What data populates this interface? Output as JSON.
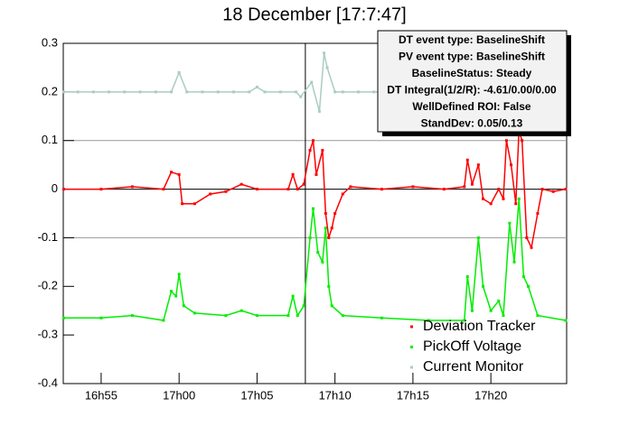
{
  "chart_data": {
    "type": "scatter",
    "title": "18 December [17:7:47]",
    "xlim": [
      1012.57,
      1044.86
    ],
    "ylim": [
      -0.4,
      0.3
    ],
    "xticks": [
      {
        "value": 1015,
        "label": "16h55"
      },
      {
        "value": 1020,
        "label": "17h00"
      },
      {
        "value": 1025,
        "label": "17h05"
      },
      {
        "value": 1030,
        "label": "17h10"
      },
      {
        "value": 1035,
        "label": "17h15"
      },
      {
        "value": 1040,
        "label": "17h20"
      }
    ],
    "yticks": [
      -0.4,
      -0.3,
      -0.2,
      -0.1,
      0,
      0.1,
      0.2,
      0.3
    ],
    "reference_lines": {
      "y": [
        0.1,
        0,
        -0.1
      ],
      "x": [
        1028.1
      ]
    },
    "stats_box": [
      "DT event type: BaselineShift",
      "PV event type: BaselineShift",
      "BaselineStatus: Steady",
      "DT Integral(1/2/R): -4.61/0.00/0.00",
      "WellDefined ROI: False",
      "StandDev: 0.05/0.13"
    ],
    "series": [
      {
        "name": "Deviation Tracker",
        "color": "#ff0000",
        "x": [
          1012.6,
          1015,
          1017,
          1019,
          1019.5,
          1020,
          1020.2,
          1021,
          1022,
          1023,
          1024,
          1025,
          1027,
          1027.3,
          1027.6,
          1028,
          1028.4,
          1028.6,
          1028.8,
          1029.2,
          1029.4,
          1029.6,
          1029.8,
          1030,
          1030.5,
          1031,
          1033,
          1035,
          1037,
          1038.3,
          1038.5,
          1038.8,
          1039.2,
          1039.5,
          1040,
          1040.5,
          1040.8,
          1041,
          1041.3,
          1041.6,
          1041.8,
          1042,
          1042.3,
          1042.6,
          1043,
          1043.3,
          1044,
          1044.8
        ],
        "values": [
          0,
          0,
          0.005,
          0,
          0.035,
          0.03,
          -0.03,
          -0.03,
          -0.01,
          -0.005,
          0.01,
          0,
          0,
          0.03,
          0,
          0.01,
          0.08,
          0.1,
          0.03,
          0.08,
          -0.05,
          -0.1,
          -0.08,
          -0.05,
          -0.01,
          0.005,
          0,
          0.005,
          0,
          0.005,
          0.06,
          0.01,
          0.05,
          -0.02,
          -0.03,
          0,
          -0.02,
          0.1,
          0.05,
          -0.03,
          0.12,
          0.1,
          -0.1,
          -0.12,
          -0.05,
          0,
          -0.005,
          0
        ]
      },
      {
        "name": "PickOff Voltage",
        "color": "#00ee00",
        "x": [
          1012.6,
          1015,
          1017,
          1019,
          1019.5,
          1019.8,
          1020,
          1020.3,
          1021,
          1023,
          1024,
          1025,
          1027,
          1027.3,
          1027.6,
          1028,
          1028.4,
          1028.6,
          1028.9,
          1029.2,
          1029.4,
          1029.6,
          1029.8,
          1030.5,
          1033,
          1036,
          1038.3,
          1038.5,
          1038.8,
          1039.2,
          1039.5,
          1040,
          1040.5,
          1040.8,
          1041.2,
          1041.5,
          1041.8,
          1042.1,
          1042.4,
          1043,
          1044.8
        ],
        "values": [
          -0.265,
          -0.265,
          -0.26,
          -0.27,
          -0.21,
          -0.22,
          -0.175,
          -0.24,
          -0.255,
          -0.26,
          -0.25,
          -0.26,
          -0.26,
          -0.22,
          -0.26,
          -0.24,
          -0.1,
          -0.04,
          -0.13,
          -0.15,
          -0.08,
          -0.2,
          -0.24,
          -0.26,
          -0.265,
          -0.27,
          -0.27,
          -0.18,
          -0.25,
          -0.1,
          -0.2,
          -0.25,
          -0.23,
          -0.26,
          -0.07,
          -0.15,
          -0.02,
          -0.18,
          -0.2,
          -0.26,
          -0.27
        ]
      },
      {
        "name": "Current Monitor",
        "color": "#aaccc4",
        "x": [
          1012.6,
          1013.5,
          1014.5,
          1015.5,
          1016.5,
          1017.5,
          1018.5,
          1019.5,
          1020,
          1020.5,
          1021.5,
          1022.5,
          1023.5,
          1024.5,
          1025,
          1025.5,
          1026.5,
          1027.5,
          1027.8,
          1028.5,
          1029,
          1029.3,
          1029.5,
          1030,
          1030.5,
          1031.5,
          1032.5,
          1033.5,
          1034.5,
          1035.5,
          1036.5,
          1037.5
        ],
        "values": [
          0.2,
          0.2,
          0.2,
          0.2,
          0.2,
          0.2,
          0.2,
          0.2,
          0.24,
          0.2,
          0.2,
          0.2,
          0.2,
          0.2,
          0.21,
          0.2,
          0.2,
          0.2,
          0.19,
          0.22,
          0.16,
          0.28,
          0.25,
          0.2,
          0.2,
          0.2,
          0.2,
          0.2,
          0.2,
          0.2,
          0.2,
          0.2
        ]
      }
    ]
  }
}
